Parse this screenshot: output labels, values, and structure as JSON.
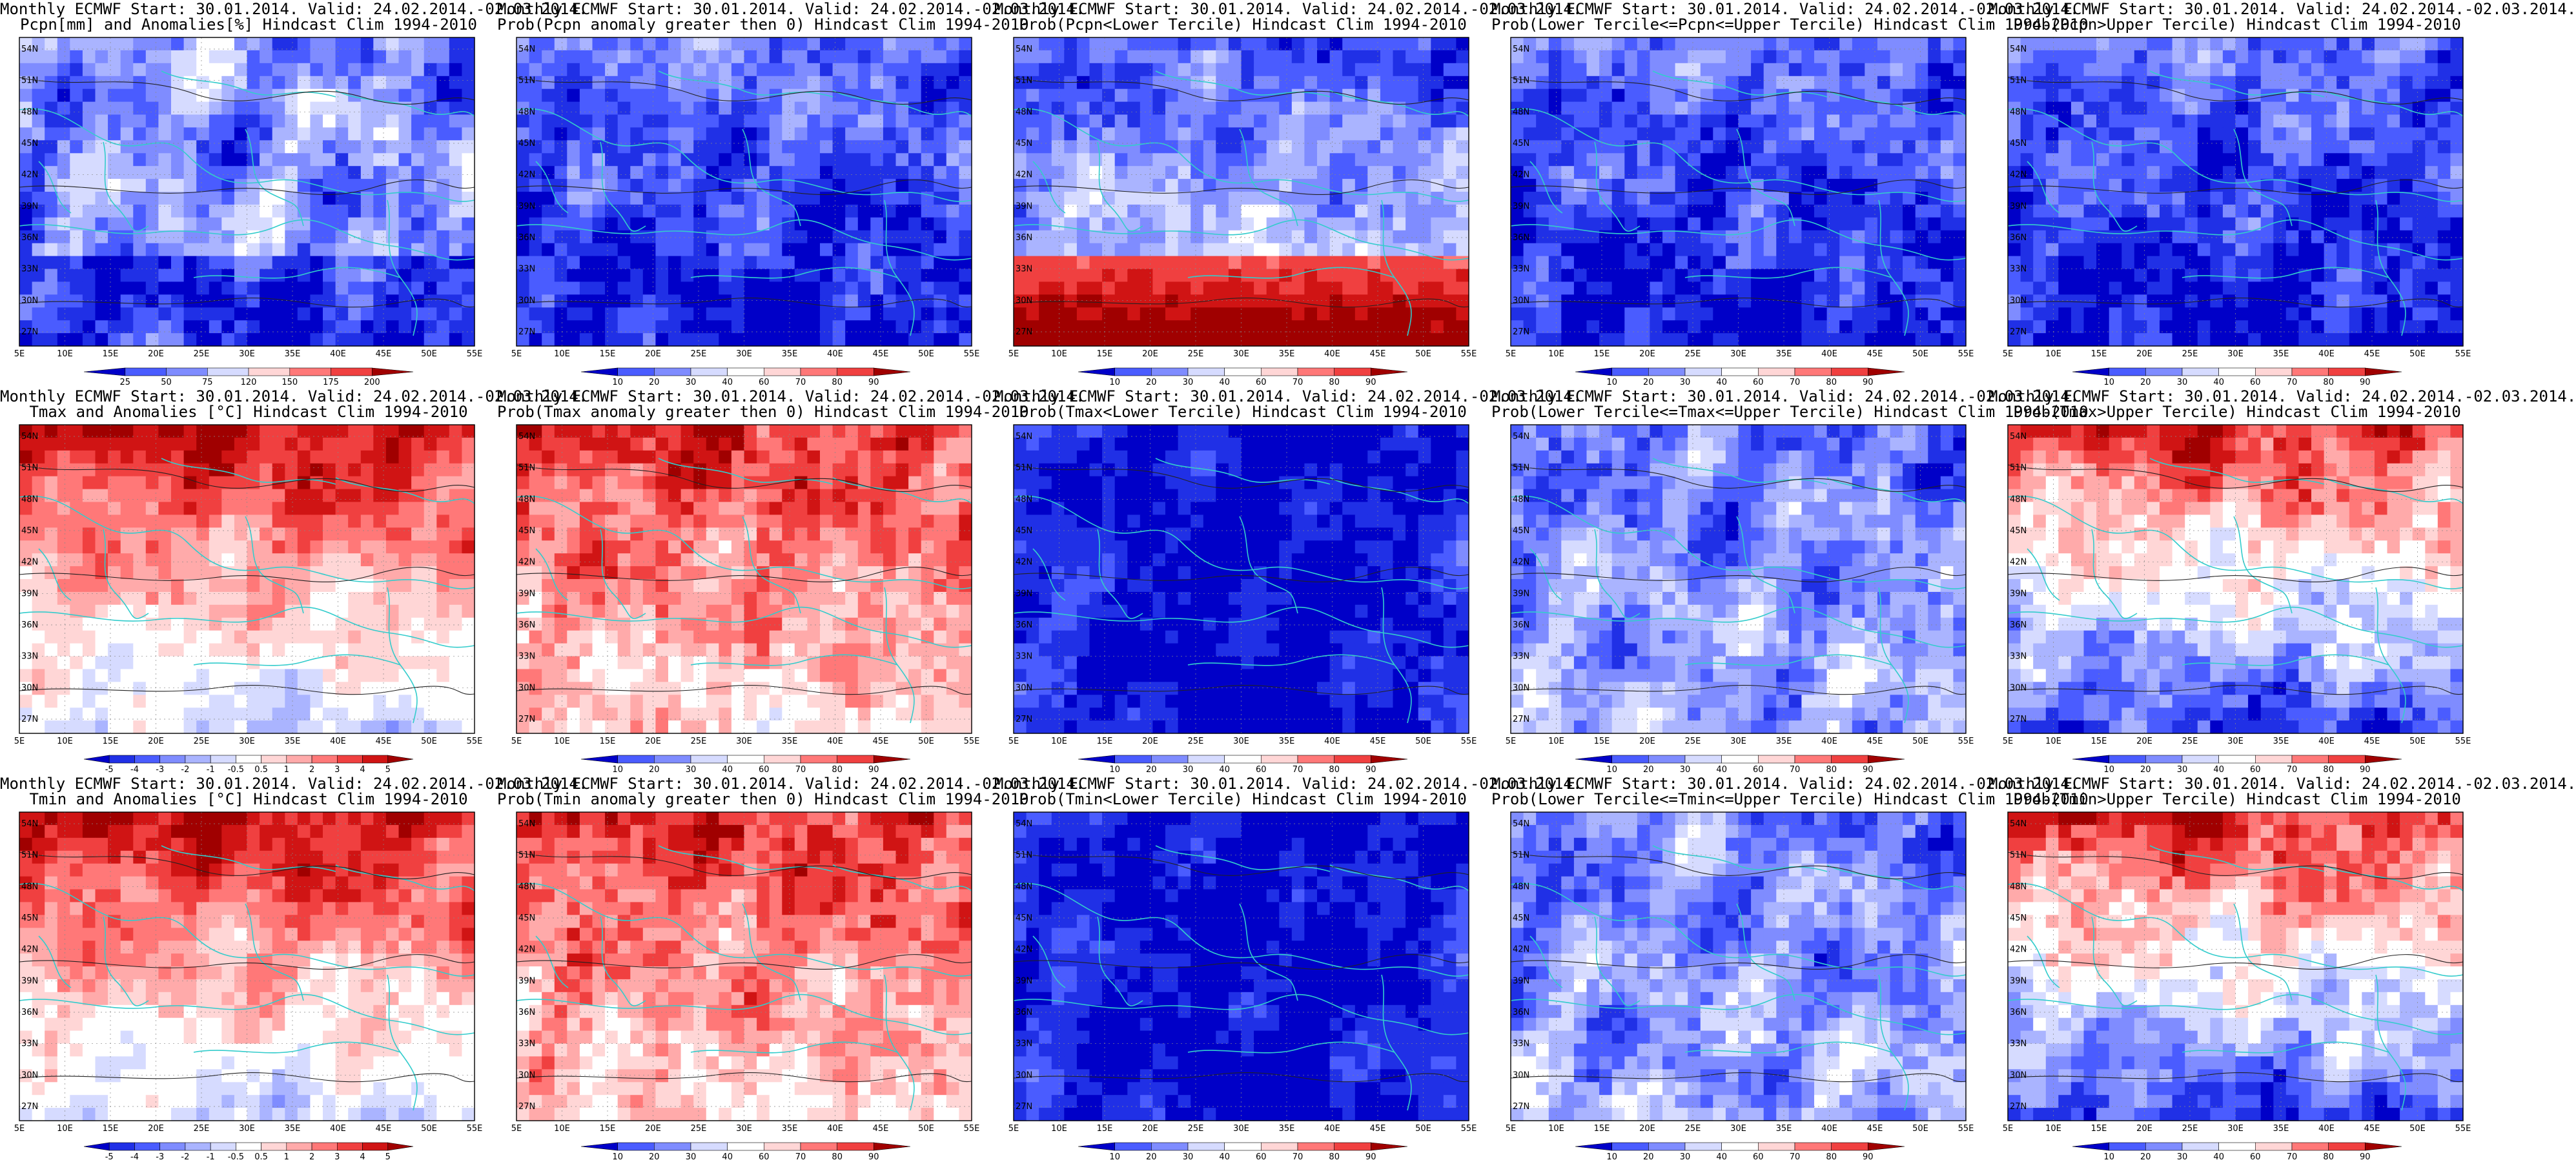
{
  "figure": {
    "lat_ticks": [
      "27N",
      "30N",
      "33N",
      "36N",
      "39N",
      "42N",
      "45N",
      "48N",
      "51N",
      "54N"
    ],
    "lon_ticks": [
      "5E",
      "10E",
      "15E",
      "20E",
      "25E",
      "30E",
      "35E",
      "40E",
      "45E",
      "50E",
      "55E"
    ],
    "palette": {
      "blues": [
        "#0000c8",
        "#2030e6",
        "#4a5cff",
        "#7f8cff",
        "#aab4ff",
        "#d6dbff"
      ],
      "reds": [
        "#ffd6d6",
        "#ffaaaa",
        "#ff7878",
        "#f04040",
        "#d01414",
        "#a00000"
      ],
      "white": "#ffffff",
      "coast": "#33cccc"
    }
  },
  "chart_data": [
    {
      "type": "heatmap",
      "title_line1": "Monthly ECMWF Start: 30.01.2014. Valid: 24.02.2014.-02.03.2014.",
      "title_line2": "Pcpn[mm] and Anomalies[%] Hindcast Clim 1994-2010",
      "colorbar_labels": [
        "25",
        "50",
        "75",
        "120",
        "150",
        "175",
        "200"
      ],
      "dominant": "mixed_precip_anom",
      "lat_range": [
        26,
        55
      ],
      "lon_range": [
        5,
        55
      ]
    },
    {
      "type": "heatmap",
      "title_line1": "Monthly ECMWF Start: 30.01.2014. Valid: 24.02.2014.-02.03.2014.",
      "title_line2": "Prob(Pcpn anomaly greater then 0) Hindcast Clim 1994-2010",
      "colorbar_labels": [
        "10",
        "20",
        "30",
        "40",
        "60",
        "70",
        "80",
        "90"
      ],
      "dominant": "blue",
      "lat_range": [
        26,
        55
      ],
      "lon_range": [
        5,
        55
      ]
    },
    {
      "type": "heatmap",
      "title_line1": "Monthly ECMWF Start: 30.01.2014. Valid: 24.02.2014.-02.03.2014.",
      "title_line2": "Prob(Pcpn<Lower Tercile) Hindcast Clim 1994-2010",
      "colorbar_labels": [
        "10",
        "20",
        "30",
        "40",
        "60",
        "70",
        "80",
        "90"
      ],
      "dominant": "blue_top_red_south",
      "lat_range": [
        26,
        55
      ],
      "lon_range": [
        5,
        55
      ]
    },
    {
      "type": "heatmap",
      "title_line1": "Monthly ECMWF Start: 30.01.2014. Valid: 24.02.2014.-02.03.2014.",
      "title_line2": "Prob(Lower Tercile<=Pcpn<=Upper Tercile) Hindcast Clim 1994-2010",
      "colorbar_labels": [
        "10",
        "20",
        "30",
        "40",
        "60",
        "70",
        "80",
        "90"
      ],
      "dominant": "blue",
      "lat_range": [
        26,
        55
      ],
      "lon_range": [
        5,
        55
      ]
    },
    {
      "type": "heatmap",
      "title_line1": "Monthly ECMWF Start: 30.01.2014. Valid: 24.02.2014.-02.03.2014.",
      "title_line2": "Prob(Pcpn>Upper Tercile) Hindcast Clim 1994-2010",
      "colorbar_labels": [
        "10",
        "20",
        "30",
        "40",
        "60",
        "70",
        "80",
        "90"
      ],
      "dominant": "blue",
      "lat_range": [
        26,
        55
      ],
      "lon_range": [
        5,
        55
      ]
    },
    {
      "type": "heatmap",
      "title_line1": "Monthly ECMWF Start: 30.01.2014. Valid: 24.02.2014.-02.03.2014.",
      "title_line2": "Tmax and Anomalies [°C] Hindcast Clim 1994-2010",
      "colorbar_labels": [
        "-5",
        "-4",
        "-3",
        "-2",
        "-1",
        "-0.5",
        "0.5",
        "1",
        "2",
        "3",
        "4",
        "5"
      ],
      "dominant": "red_north",
      "lat_range": [
        26,
        55
      ],
      "lon_range": [
        5,
        55
      ]
    },
    {
      "type": "heatmap",
      "title_line1": "Monthly ECMWF Start: 30.01.2014. Valid: 24.02.2014.-02.03.2014.",
      "title_line2": "Prob(Tmax anomaly greater then 0) Hindcast Clim 1994-2010",
      "colorbar_labels": [
        "10",
        "20",
        "30",
        "40",
        "60",
        "70",
        "80",
        "90"
      ],
      "dominant": "red",
      "lat_range": [
        26,
        55
      ],
      "lon_range": [
        5,
        55
      ]
    },
    {
      "type": "heatmap",
      "title_line1": "Monthly ECMWF Start: 30.01.2014. Valid: 24.02.2014.-02.03.2014.",
      "title_line2": "Prob(Tmax<Lower Tercile) Hindcast Clim 1994-2010",
      "colorbar_labels": [
        "10",
        "20",
        "30",
        "40",
        "60",
        "70",
        "80",
        "90"
      ],
      "dominant": "blue_deep",
      "lat_range": [
        26,
        55
      ],
      "lon_range": [
        5,
        55
      ]
    },
    {
      "type": "heatmap",
      "title_line1": "Monthly ECMWF Start: 30.01.2014. Valid: 24.02.2014.-02.03.2014.",
      "title_line2": "Prob(Lower Tercile<=Tmax<=Upper Tercile) Hindcast Clim 1994-2010",
      "colorbar_labels": [
        "10",
        "20",
        "30",
        "40",
        "60",
        "70",
        "80",
        "90"
      ],
      "dominant": "blue_light",
      "lat_range": [
        26,
        55
      ],
      "lon_range": [
        5,
        55
      ]
    },
    {
      "type": "heatmap",
      "title_line1": "Monthly ECMWF Start: 30.01.2014. Valid: 24.02.2014.-02.03.2014.",
      "title_line2": "Prob(Tmax>Upper Tercile) Hindcast Clim 1994-2010",
      "colorbar_labels": [
        "10",
        "20",
        "30",
        "40",
        "60",
        "70",
        "80",
        "90"
      ],
      "dominant": "red_north_blue_south",
      "lat_range": [
        26,
        55
      ],
      "lon_range": [
        5,
        55
      ]
    },
    {
      "type": "heatmap",
      "title_line1": "Monthly ECMWF Start: 30.01.2014. Valid: 24.02.2014.-02.03.2014.",
      "title_line2": "Tmin and Anomalies [°C] Hindcast Clim 1994-2010",
      "colorbar_labels": [
        "-5",
        "-4",
        "-3",
        "-2",
        "-1",
        "-0.5",
        "0.5",
        "1",
        "2",
        "3",
        "4",
        "5"
      ],
      "dominant": "red_north",
      "lat_range": [
        26,
        55
      ],
      "lon_range": [
        5,
        55
      ]
    },
    {
      "type": "heatmap",
      "title_line1": "Monthly ECMWF Start: 30.01.2014. Valid: 24.02.2014.-02.03.2014.",
      "title_line2": "Prob(Tmin anomaly greater then 0) Hindcast Clim 1994-2010",
      "colorbar_labels": [
        "10",
        "20",
        "30",
        "40",
        "60",
        "70",
        "80",
        "90"
      ],
      "dominant": "red",
      "lat_range": [
        26,
        55
      ],
      "lon_range": [
        5,
        55
      ]
    },
    {
      "type": "heatmap",
      "title_line1": "Monthly ECMWF Start: 30.01.2014. Valid: 24.02.2014.-02.03.2014.",
      "title_line2": "Prob(Tmin<Lower Tercile) Hindcast Clim 1994-2010",
      "colorbar_labels": [
        "10",
        "20",
        "30",
        "40",
        "60",
        "70",
        "80",
        "90"
      ],
      "dominant": "blue_deep",
      "lat_range": [
        26,
        55
      ],
      "lon_range": [
        5,
        55
      ]
    },
    {
      "type": "heatmap",
      "title_line1": "Monthly ECMWF Start: 30.01.2014. Valid: 24.02.2014.-02.03.2014.",
      "title_line2": "Prob(Lower Tercile<=Tmin<=Upper Tercile) Hindcast Clim 1994-2010",
      "colorbar_labels": [
        "10",
        "20",
        "30",
        "40",
        "60",
        "70",
        "80",
        "90"
      ],
      "dominant": "blue_light",
      "lat_range": [
        26,
        55
      ],
      "lon_range": [
        5,
        55
      ]
    },
    {
      "type": "heatmap",
      "title_line1": "Monthly ECMWF Start: 30.01.2014. Valid: 24.02.2014.-02.03.2014.",
      "title_line2": "Prob(Tmin>Upper Tercile) Hindcast Clim 1994-2010",
      "colorbar_labels": [
        "10",
        "20",
        "30",
        "40",
        "60",
        "70",
        "80",
        "90"
      ],
      "dominant": "red_north_blue_south",
      "lat_range": [
        26,
        55
      ],
      "lon_range": [
        5,
        55
      ]
    }
  ]
}
